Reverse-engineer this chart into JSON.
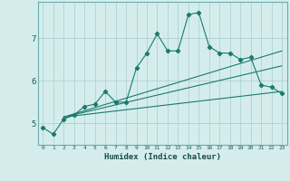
{
  "xlabel": "Humidex (Indice chaleur)",
  "background_color": "#d4edec",
  "grid_color": "#a8cccc",
  "line_color": "#1a7a6e",
  "x_data": [
    0,
    1,
    2,
    3,
    4,
    5,
    6,
    7,
    8,
    9,
    10,
    11,
    12,
    13,
    14,
    15,
    16,
    17,
    18,
    19,
    20,
    21,
    22,
    23
  ],
  "series1": [
    4.9,
    4.75,
    5.1,
    5.2,
    5.4,
    5.45,
    5.75,
    5.5,
    5.5,
    6.3,
    6.65,
    7.1,
    6.7,
    6.7,
    7.55,
    7.6,
    6.8,
    6.65,
    6.65,
    6.5,
    6.55,
    5.9,
    5.85,
    5.7
  ],
  "series2_x": [
    2,
    23
  ],
  "series2_y": [
    5.15,
    5.75
  ],
  "series3_x": [
    2,
    23
  ],
  "series3_y": [
    5.15,
    6.35
  ],
  "series4_x": [
    2,
    23
  ],
  "series4_y": [
    5.15,
    6.7
  ],
  "ylim": [
    4.5,
    7.85
  ],
  "xlim": [
    -0.5,
    23.5
  ]
}
